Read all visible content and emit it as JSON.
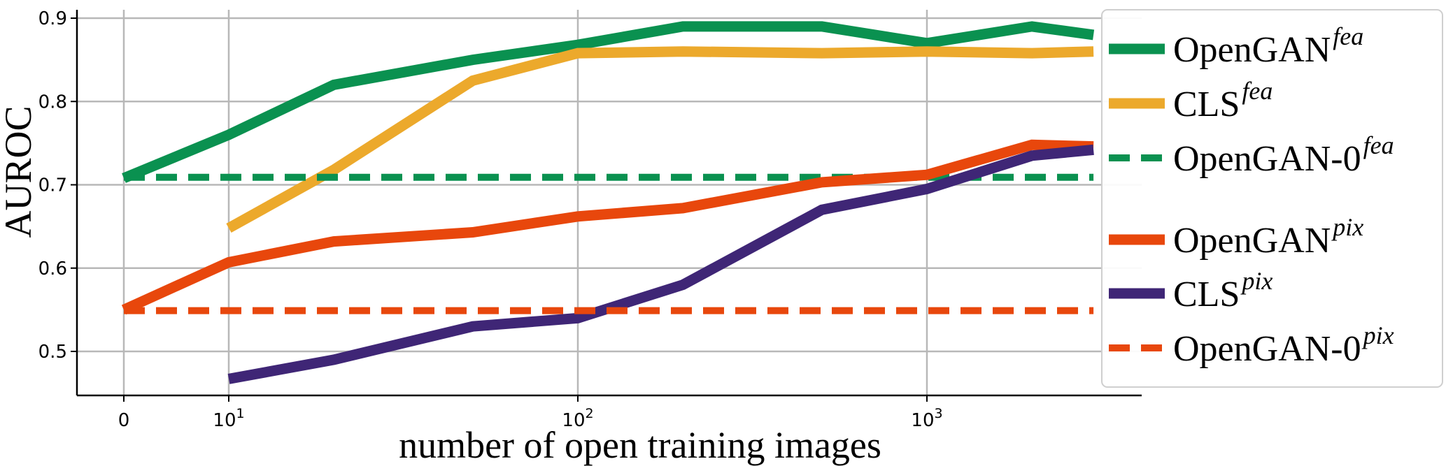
{
  "chart_data": {
    "type": "line",
    "xlabel": "number of open training images",
    "ylabel": "AUROC",
    "x_scale": "symlog",
    "x_ticks": [
      {
        "value": 0,
        "base": "0",
        "exp": ""
      },
      {
        "value": 10,
        "base": "10",
        "exp": "1"
      },
      {
        "value": 100,
        "base": "10",
        "exp": "2"
      },
      {
        "value": 1000,
        "base": "10",
        "exp": "3"
      }
    ],
    "y_ticks": [
      "0.5",
      "0.6",
      "0.7",
      "0.8",
      "0.9"
    ],
    "ylim": [
      0.45,
      0.91
    ],
    "grid": true,
    "legend_position": "right",
    "series": [
      {
        "name": "OpenGAN",
        "sup": "fea",
        "color": "#0a9150",
        "style": "solid",
        "x": [
          0,
          10,
          20,
          50,
          100,
          200,
          500,
          1000,
          2000,
          3000
        ],
        "y": [
          0.708,
          0.76,
          0.82,
          0.85,
          0.868,
          0.89,
          0.89,
          0.87,
          0.89,
          0.88
        ]
      },
      {
        "name": "CLS",
        "sup": "fea",
        "color": "#eca92c",
        "style": "solid",
        "x": [
          10,
          20,
          50,
          100,
          200,
          500,
          1000,
          2000,
          3000
        ],
        "y": [
          0.648,
          0.718,
          0.825,
          0.858,
          0.86,
          0.858,
          0.86,
          0.858,
          0.86
        ]
      },
      {
        "name": "OpenGAN-0",
        "sup": "fea",
        "color": "#0a9150",
        "style": "dashed",
        "x": [
          0,
          3000
        ],
        "y": [
          0.709,
          0.709
        ]
      },
      {
        "name": "OpenGAN",
        "sup": "pix",
        "color": "#e8470c",
        "style": "solid",
        "x": [
          0,
          10,
          20,
          50,
          100,
          200,
          500,
          1000,
          2000,
          3000
        ],
        "y": [
          0.55,
          0.607,
          0.632,
          0.643,
          0.662,
          0.672,
          0.703,
          0.712,
          0.748,
          0.746
        ]
      },
      {
        "name": "CLS",
        "sup": "pix",
        "color": "#3f2676",
        "style": "solid",
        "x": [
          10,
          20,
          50,
          100,
          200,
          500,
          1000,
          2000,
          3000
        ],
        "y": [
          0.467,
          0.49,
          0.53,
          0.54,
          0.58,
          0.67,
          0.695,
          0.735,
          0.742
        ]
      },
      {
        "name": "OpenGAN-0",
        "sup": "pix",
        "color": "#e8470c",
        "style": "dashed",
        "x": [
          0,
          3000
        ],
        "y": [
          0.549,
          0.549
        ]
      }
    ]
  }
}
